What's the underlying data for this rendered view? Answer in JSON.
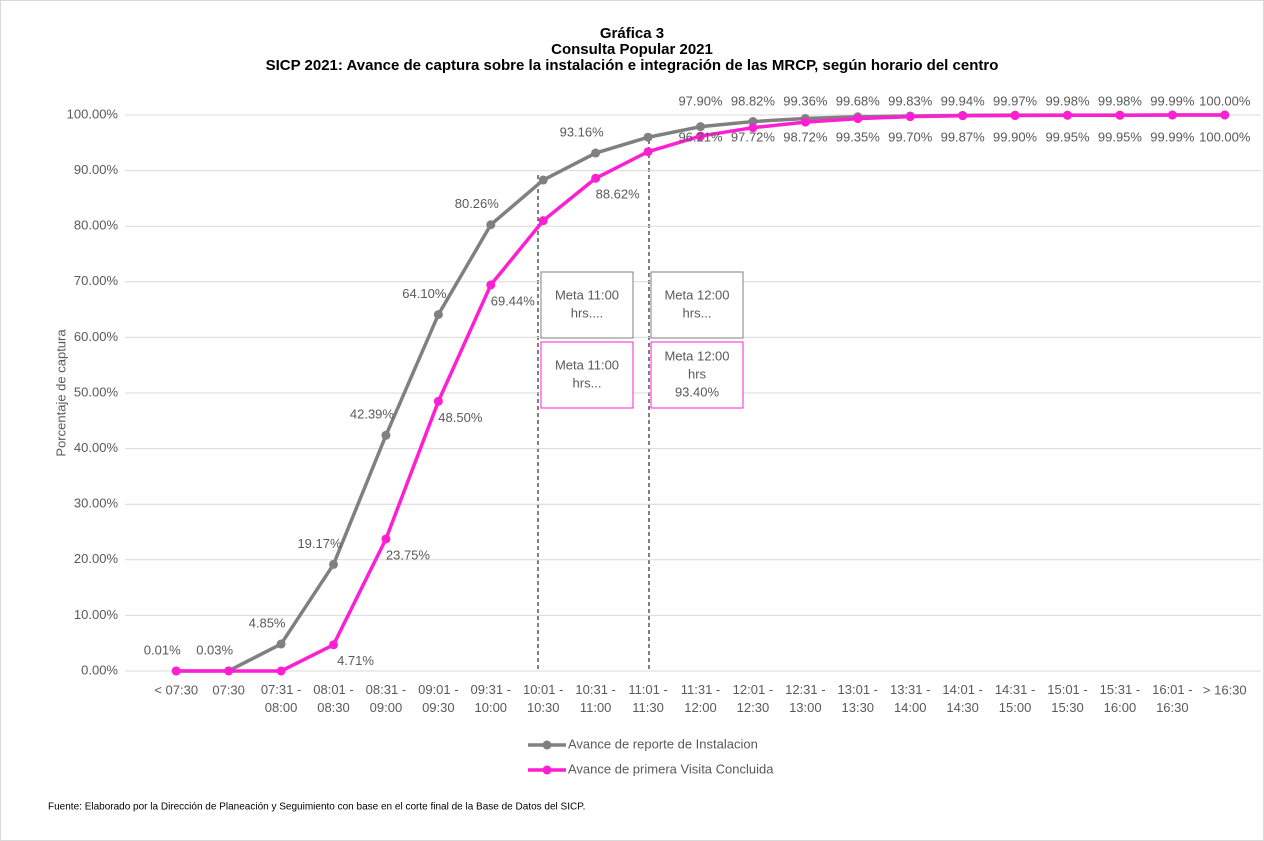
{
  "chart_data": {
    "type": "line",
    "title": [
      "Gráfica 3",
      "Consulta Popular 2021",
      "SICP 2021: Avance de captura sobre la instalación e integración de las MRCP, según horario del centro"
    ],
    "ylabel": "Porcentaje de captura",
    "categories": [
      "< 07:30",
      "07:30",
      "07:31 - 08:00",
      "08:01 - 08:30",
      "08:31 - 09:00",
      "09:01 - 09:30",
      "09:31 - 10:00",
      "10:01 - 10:30",
      "10:31 - 11:00",
      "11:01 - 11:30",
      "11:31 - 12:00",
      "12:01 - 12:30",
      "12:31 - 13:00",
      "13:01 - 13:30",
      "13:31 - 14:00",
      "14:01 - 14:30",
      "14:31 - 15:00",
      "15:01 - 15:30",
      "15:31 - 16:00",
      "16:01 - 16:30",
      "> 16:30"
    ],
    "series": [
      {
        "name": "Avance de reporte de Instalacion",
        "color": "#808080",
        "values": [
          0.01,
          0.03,
          4.85,
          19.17,
          42.39,
          64.1,
          80.26,
          88.3,
          93.16,
          96.0,
          97.9,
          98.82,
          99.36,
          99.68,
          99.83,
          99.94,
          99.97,
          99.98,
          99.98,
          99.99,
          100.0
        ],
        "value_labels": [
          "0.01%",
          "0.03%",
          "4.85%",
          "19.17%",
          "42.39%",
          "64.10%",
          "80.26%",
          null,
          "93.16%",
          null,
          "97.90%",
          "98.82%",
          "99.36%",
          "99.68%",
          "99.83%",
          "99.94%",
          "99.97%",
          "99.98%",
          "99.98%",
          "99.99%",
          "100.00%"
        ]
      },
      {
        "name": "Avance de primera Visita Concluida",
        "color": "#ff1fd2",
        "values": [
          0,
          0,
          0,
          4.71,
          23.75,
          48.5,
          69.44,
          81.0,
          88.62,
          93.4,
          96.21,
          97.72,
          98.72,
          99.35,
          99.7,
          99.87,
          99.9,
          99.95,
          99.95,
          99.99,
          100.0
        ],
        "value_labels": [
          null,
          null,
          null,
          "4.71%",
          "23.75%",
          "48.50%",
          "69.44%",
          null,
          "88.62%",
          null,
          "96.21%",
          "97.72%",
          "98.72%",
          "99.35%",
          "99.70%",
          "99.87%",
          "99.90%",
          "99.95%",
          "99.95%",
          "99.99%",
          "100.00%"
        ]
      }
    ],
    "ylim": [
      0,
      100
    ],
    "yticks": [
      {
        "value": 0,
        "label": "0.00%"
      },
      {
        "value": 10,
        "label": "10.00%"
      },
      {
        "value": 20,
        "label": "20.00%"
      },
      {
        "value": 30,
        "label": "30.00%"
      },
      {
        "value": 40,
        "label": "40.00%"
      },
      {
        "value": 50,
        "label": "50.00%"
      },
      {
        "value": 60,
        "label": "60.00%"
      },
      {
        "value": 70,
        "label": "70.00%"
      },
      {
        "value": 80,
        "label": "80.00%"
      },
      {
        "value": 90,
        "label": "90.00%"
      },
      {
        "value": 100,
        "label": "100.00%"
      }
    ],
    "grid": true,
    "annotations": [
      {
        "lines": [
          "Meta 11:00",
          "hrs...."
        ],
        "color": "#808080"
      },
      {
        "lines": [
          "Meta 12:00",
          "hrs..."
        ],
        "color": "#808080"
      },
      {
        "lines": [
          "Meta 11:00",
          "hrs..."
        ],
        "color": "#ff1fd2"
      },
      {
        "lines": [
          "Meta 12:00",
          "hrs",
          "93.40%"
        ],
        "color": "#ff1fd2"
      }
    ],
    "source": "Fuente: Elaborado por la Dirección de Planeación y Seguimiento con base en el corte final de la Base de Datos del SICP."
  }
}
